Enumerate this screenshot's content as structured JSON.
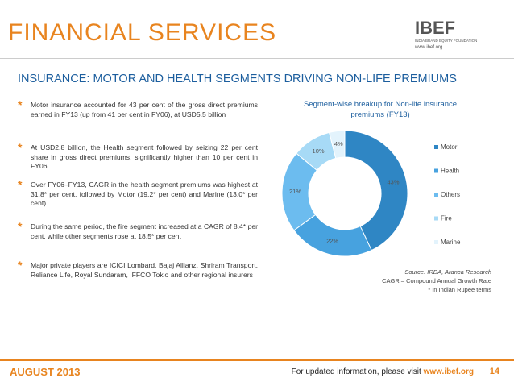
{
  "header": {
    "title": "FINANCIAL SERVICES",
    "logo": "IBEF",
    "logo_tagline": "INDIA BRAND EQUITY FOUNDATION",
    "logo_url": "www.ibef.org",
    "subtitle": "INSURANCE: MOTOR AND HEALTH SEGMENTS DRIVING NON-LIFE PREMIUMS"
  },
  "bullets": [
    "Motor insurance accounted for 43 per cent of the gross direct premiums earned in FY13 (up from 41 per cent in FY06), at USD5.5 billion",
    "At USD2.8 billion, the Health segment followed by seizing 22 per cent share in gross direct premiums, significantly higher than 10 per cent in FY06",
    "Over FY06–FY13, CAGR in the health segment premiums was highest at 31.8* per cent, followed by Motor (19.2* per cent) and Marine (13.0* per cent)",
    "During the same period, the fire segment increased at a CAGR of 8.4* per cent, while other segments rose at 18.5* per cent",
    "Major private players are ICICI Lombard, Bajaj Allianz, Shriram Transport, Reliance Life, Royal Sundaram, IFFCO Tokio and other regional insurers"
  ],
  "chart_data": {
    "type": "donut",
    "title": "Segment-wise breakup for Non-life insurance premiums (FY13)",
    "categories": [
      "Motor",
      "Health",
      "Others",
      "Fire",
      "Marine"
    ],
    "values": [
      43,
      22,
      21,
      10,
      4
    ],
    "value_labels": [
      "43%",
      "22%",
      "21%",
      "10%",
      "4%"
    ],
    "colors": [
      "#2f86c4",
      "#47a2df",
      "#6cbcef",
      "#a7daf6",
      "#e3f3fc"
    ],
    "legend": "right"
  },
  "notes": [
    "Source: IRDA, Aranca Research",
    "CAGR – Compound Annual Growth Rate",
    "* In Indian Rupee terms"
  ],
  "footer": {
    "date": "AUGUST 2013",
    "info": "For updated information, please visit",
    "url": "www.ibef.org",
    "page": "14"
  }
}
